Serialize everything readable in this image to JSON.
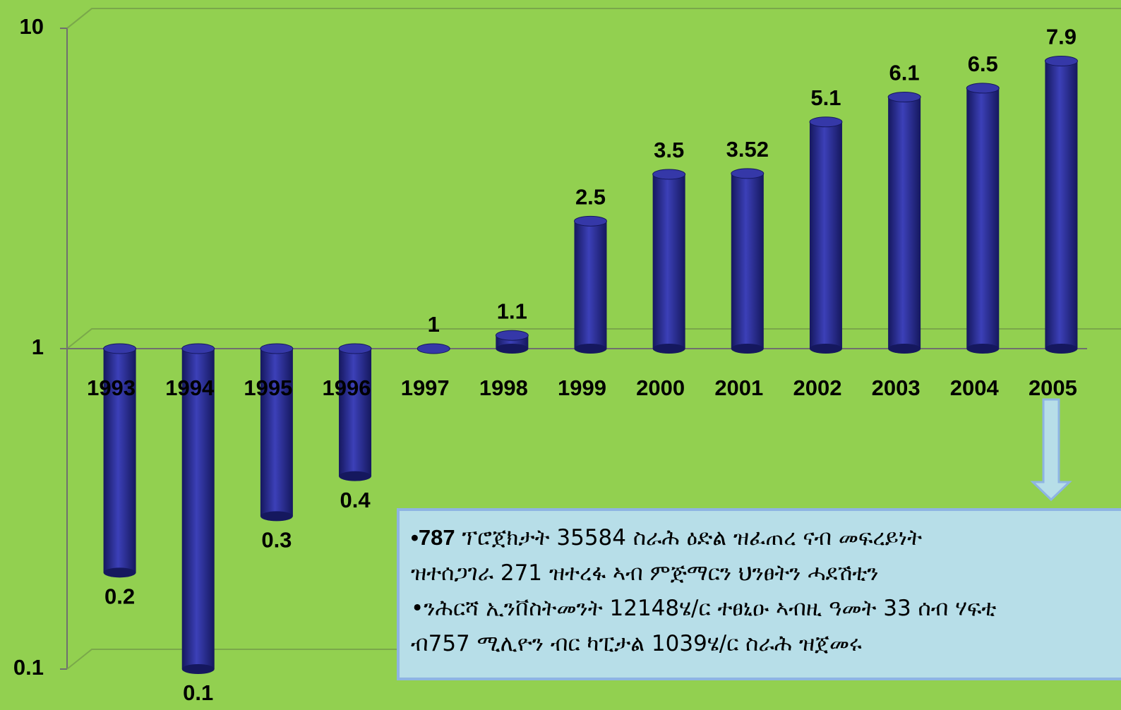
{
  "chart_data": {
    "type": "bar",
    "categories": [
      "1993",
      "1994",
      "1995",
      "1996",
      "1997",
      "1998",
      "1999",
      "2000",
      "2001",
      "2002",
      "2003",
      "2004",
      "2005"
    ],
    "values": [
      0.2,
      0.1,
      0.3,
      0.4,
      1,
      1.1,
      2.5,
      3.5,
      3.52,
      5.1,
      6.1,
      6.5,
      7.9
    ],
    "color": "#2b2f8f",
    "log_scale": true,
    "ylim": [
      0.1,
      10
    ],
    "yticks": [
      0.1,
      1,
      10
    ],
    "grid": true,
    "annotation": [
      [
        "•787",
        " ፕሮጀክታት  35584 ስራሕ ዕድል ዝፈጠረ ናብ መፍረይነት"
      ],
      [
        "ዝተሰጋገራ 271 ዝተረፋ ኣብ ምጅማርን ህንፀትን ሓደሽቲን"
      ],
      [
        "•ንሕርሻ ኢንቨስትመንት 12148ሄ/ር ተፀኒዑ ኣብዚ ዓመት 33 ሰብ ሃፍቲ"
      ],
      [
        "ብ757 ሚሊዮን ብር ካፒታል 1039ሄ/ር ስራሕ ዝጀመሩ"
      ]
    ]
  }
}
